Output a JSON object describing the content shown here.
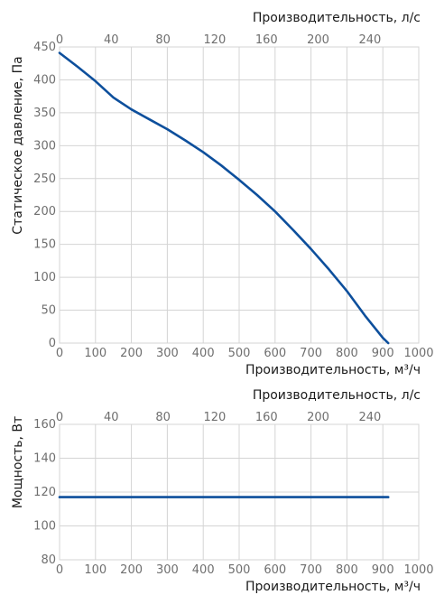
{
  "colors": {
    "curve": "#0d4f9c",
    "grid": "#d4d4d4",
    "text": "#1a1a1a",
    "tick": "#6f6f6f"
  },
  "chart_data": [
    {
      "type": "line",
      "title": "",
      "top_xlabel": "Производительность, л/с",
      "xlabel": "Производительность, м³/ч",
      "ylabel": "Статическое давление, Па",
      "xlim": [
        0,
        1000
      ],
      "ylim": [
        0,
        450
      ],
      "top_xlim_lps": [
        0,
        277.78
      ],
      "x_ticks": [
        0,
        100,
        200,
        300,
        400,
        500,
        600,
        700,
        800,
        900,
        1000
      ],
      "x_tick_labels": [
        "0",
        "100",
        "200",
        "300",
        "400",
        "500",
        "600",
        "700",
        "800",
        "900",
        "1000"
      ],
      "top_ticks": [
        0,
        40,
        80,
        120,
        160,
        200,
        240
      ],
      "top_tick_labels": [
        "0",
        "40",
        "80",
        "120",
        "160",
        "200",
        "240"
      ],
      "y_ticks": [
        0,
        50,
        100,
        150,
        200,
        250,
        300,
        350,
        400,
        450
      ],
      "y_tick_labels": [
        "0",
        "50",
        "100",
        "150",
        "200",
        "250",
        "300",
        "350",
        "400",
        "450"
      ],
      "grid": true,
      "series": [
        {
          "x": [
            0,
            50,
            100,
            150,
            200,
            250,
            300,
            350,
            400,
            450,
            500,
            550,
            600,
            650,
            700,
            750,
            800,
            850,
            900,
            915
          ],
          "y": [
            441,
            420,
            398,
            373,
            355,
            340,
            325,
            308,
            290,
            270,
            248,
            225,
            200,
            172,
            143,
            112,
            79,
            42,
            8,
            0
          ]
        }
      ]
    },
    {
      "type": "line",
      "title": "",
      "top_xlabel": "Производительность, л/с",
      "xlabel": "Производительность, м³/ч",
      "ylabel": "Мощность, Вт",
      "xlim": [
        0,
        1000
      ],
      "ylim": [
        80,
        160
      ],
      "top_xlim_lps": [
        0,
        277.78
      ],
      "x_ticks": [
        0,
        100,
        200,
        300,
        400,
        500,
        600,
        700,
        800,
        900,
        1000
      ],
      "x_tick_labels": [
        "0",
        "100",
        "200",
        "300",
        "400",
        "500",
        "600",
        "700",
        "800",
        "900",
        "1000"
      ],
      "top_ticks": [
        0,
        40,
        80,
        120,
        160,
        200,
        240
      ],
      "top_tick_labels": [
        "0",
        "40",
        "80",
        "120",
        "160",
        "200",
        "240"
      ],
      "y_ticks": [
        80,
        100,
        120,
        140,
        160
      ],
      "y_tick_labels": [
        "80",
        "100",
        "120",
        "140",
        "160"
      ],
      "grid": true,
      "series": [
        {
          "x": [
            0,
            915
          ],
          "y": [
            117,
            117
          ]
        }
      ]
    }
  ]
}
